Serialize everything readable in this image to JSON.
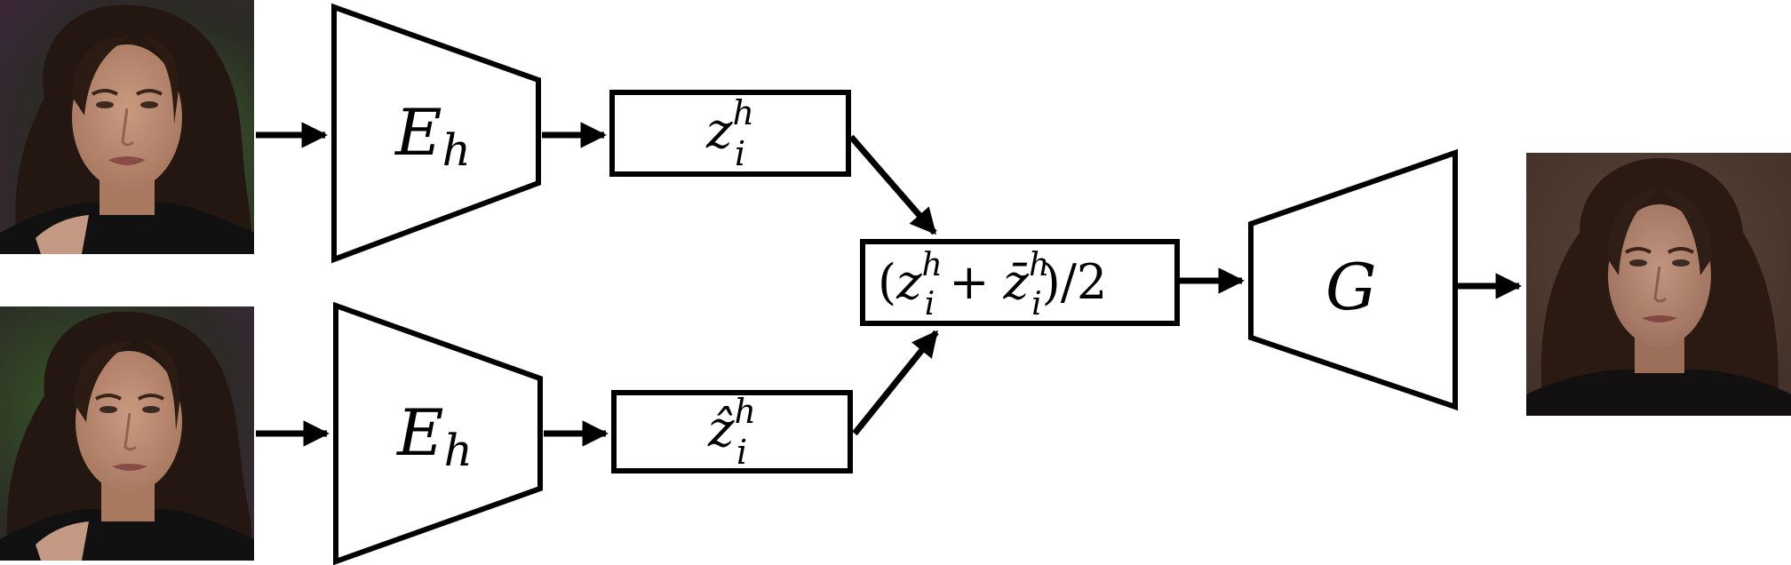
{
  "diagram": {
    "input_top": {
      "description": "input face frame"
    },
    "input_bottom": {
      "description": "input face frame"
    },
    "output": {
      "description": "generated face frame"
    },
    "encoder_top": {
      "symbol": "E",
      "subscript": "h"
    },
    "encoder_bottom": {
      "symbol": "E",
      "subscript": "h"
    },
    "latent_top": {
      "symbol": "z",
      "superscript": "h",
      "subscript": "i"
    },
    "latent_bottom": {
      "symbol": "ẑ",
      "superscript": "h",
      "subscript": "i"
    },
    "average": {
      "open": "(",
      "z": "z",
      "sup1": "h",
      "sub1": "i",
      "plus": "+",
      "zbar": "z̄",
      "sup2": "h",
      "sub2": "i",
      "close": ")/2"
    },
    "generator": {
      "symbol": "G"
    },
    "colors": {
      "stroke": "#000000",
      "background": "#ffffff",
      "skin": "#b98a72",
      "hair": "#241711",
      "backdrop_dark": "#2a2a24",
      "backdrop_green": "#3b5a2a",
      "backdrop_purple": "#3a2838",
      "clothing": "#111111"
    }
  }
}
